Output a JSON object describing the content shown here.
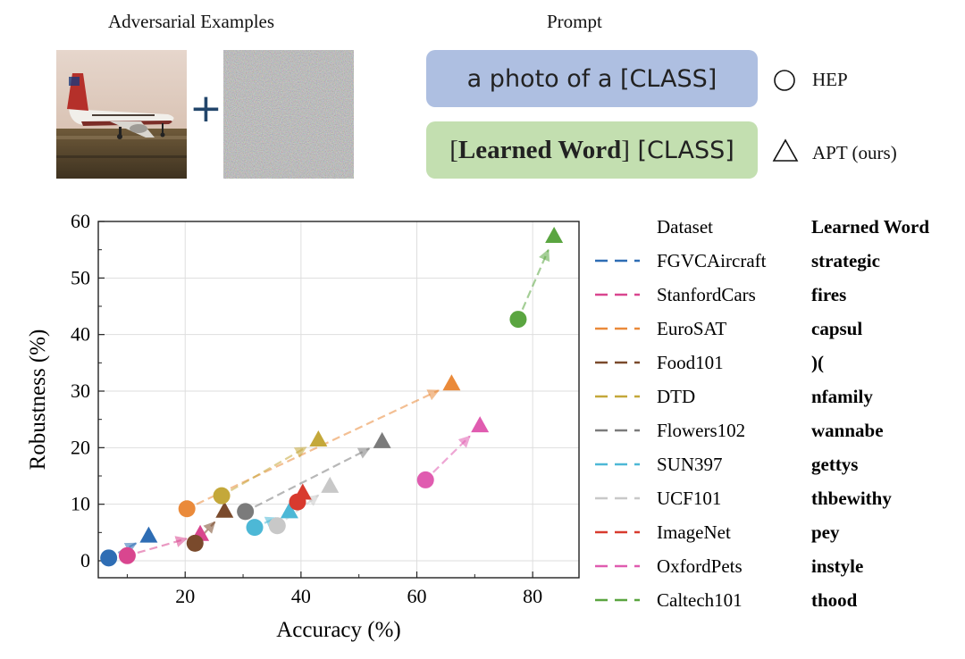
{
  "header": {
    "adversarial_title": "Adversarial Examples",
    "prompt_title": "Prompt",
    "plus": "+",
    "hep_prompt": "a photo of a [CLASS]",
    "apt_prompt_prefix": "[",
    "apt_prompt_word": "Learned Word",
    "apt_prompt_suffix": "]",
    "apt_prompt_class": " [CLASS]",
    "hep_label": "HEP",
    "apt_label": "APT (ours)"
  },
  "legend": {
    "dataset_header": "Dataset",
    "word_header": "Learned Word"
  },
  "chart_data": {
    "type": "scatter",
    "xlabel": "Accuracy (%)",
    "ylabel": "Robustness (%)",
    "xlim": [
      5,
      88
    ],
    "ylim": [
      -3,
      60
    ],
    "xticks": [
      20,
      40,
      60,
      80
    ],
    "yticks": [
      0,
      10,
      20,
      30,
      40,
      50,
      60
    ],
    "grid": true,
    "legend_position": "right",
    "markers": {
      "HEP": "circle",
      "APT": "triangle"
    },
    "series": [
      {
        "name": "FGVCAircraft",
        "word": "strategic",
        "color": "#2e6db4",
        "hep": [
          6.8,
          0.5
        ],
        "apt": [
          13.7,
          4.3
        ]
      },
      {
        "name": "StanfordCars",
        "word": "fires",
        "color": "#d9468f",
        "hep": [
          10.0,
          0.9
        ],
        "apt": [
          22.6,
          4.6
        ]
      },
      {
        "name": "EuroSAT",
        "word": "capsul",
        "color": "#ea8a3a",
        "hep": [
          20.3,
          9.2
        ],
        "apt": [
          66.0,
          31.2
        ]
      },
      {
        "name": "Food101",
        "word": ")(",
        "color": "#7a4a2c",
        "hep": [
          21.7,
          3.1
        ],
        "apt": [
          26.8,
          8.7
        ]
      },
      {
        "name": "DTD",
        "word": "nfamily",
        "color": "#c4a83a",
        "hep": [
          26.3,
          11.5
        ],
        "apt": [
          43.0,
          21.3
        ]
      },
      {
        "name": "Flowers102",
        "word": "wannabe",
        "color": "#7b7b7b",
        "hep": [
          30.4,
          8.7
        ],
        "apt": [
          54.0,
          21.0
        ]
      },
      {
        "name": "SUN397",
        "word": "gettys",
        "color": "#4db8d6",
        "hep": [
          32.0,
          5.9
        ],
        "apt": [
          38.0,
          8.6
        ]
      },
      {
        "name": "UCF101",
        "word": "thbewithy",
        "color": "#c8c8c8",
        "hep": [
          35.9,
          6.2
        ],
        "apt": [
          45.0,
          13.1
        ]
      },
      {
        "name": "ImageNet",
        "word": "pey",
        "color": "#d83a2e",
        "hep": [
          39.4,
          10.4
        ],
        "apt": [
          40.3,
          11.9
        ]
      },
      {
        "name": "OxfordPets",
        "word": "instyle",
        "color": "#e05cb0",
        "hep": [
          61.5,
          14.3
        ],
        "apt": [
          70.9,
          23.8
        ]
      },
      {
        "name": "Caltech101",
        "word": "thood",
        "color": "#5aa540",
        "hep": [
          77.5,
          42.7
        ],
        "apt": [
          83.7,
          57.3
        ]
      }
    ]
  }
}
